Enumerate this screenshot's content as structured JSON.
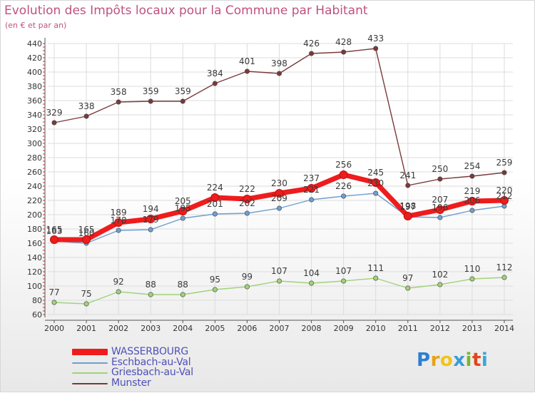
{
  "title": "Evolution des Impôts locaux pour la Commune par Habitant",
  "subtitle": "(en € et par an)",
  "logo": "Proxiti",
  "chart_data": {
    "type": "line",
    "title": "Evolution des Impôts locaux pour la Commune par Habitant",
    "subtitle": "(en € et par an)",
    "x": [
      "2000",
      "2001",
      "2002",
      "2003",
      "2004",
      "2005",
      "2006",
      "2007",
      "2008",
      "2009",
      "2010",
      "2011",
      "2012",
      "2013",
      "2014"
    ],
    "ylim": [
      60,
      440
    ],
    "yticks": [
      60,
      80,
      100,
      120,
      140,
      160,
      180,
      200,
      220,
      240,
      260,
      280,
      300,
      320,
      340,
      360,
      380,
      400,
      420,
      440
    ],
    "grid": true,
    "legend_position": "bottom-left",
    "series": [
      {
        "name": "WASSERBOURG",
        "color": "#ee1c1c",
        "values": [
          165,
          165,
          189,
          194,
          205,
          224,
          222,
          230,
          237,
          256,
          245,
          198,
          207,
          219,
          220
        ]
      },
      {
        "name": "Eschbach-au-Val",
        "color": "#6f9fcf",
        "values": [
          163,
          160,
          178,
          179,
          195,
          201,
          202,
          209,
          221,
          226,
          230,
          197,
          196,
          206,
          212
        ]
      },
      {
        "name": "Griesbach-au-Val",
        "color": "#a1d27a",
        "values": [
          77,
          75,
          92,
          88,
          88,
          95,
          99,
          107,
          104,
          107,
          111,
          97,
          102,
          110,
          112
        ]
      },
      {
        "name": "Munster",
        "color": "#7a3a3a",
        "values": [
          329,
          338,
          358,
          359,
          359,
          384,
          401,
          398,
          426,
          428,
          433,
          241,
          250,
          254,
          259
        ]
      }
    ]
  }
}
